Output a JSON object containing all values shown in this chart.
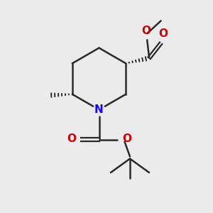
{
  "background_color": "#ebebeb",
  "bond_color": "#2a2a2a",
  "nitrogen_color": "#1400ff",
  "oxygen_color": "#cc0000",
  "line_width": 1.8,
  "figsize": [
    3.0,
    3.0
  ],
  "dpi": 100,
  "xlim": [
    0,
    10
  ],
  "ylim": [
    0,
    10
  ]
}
